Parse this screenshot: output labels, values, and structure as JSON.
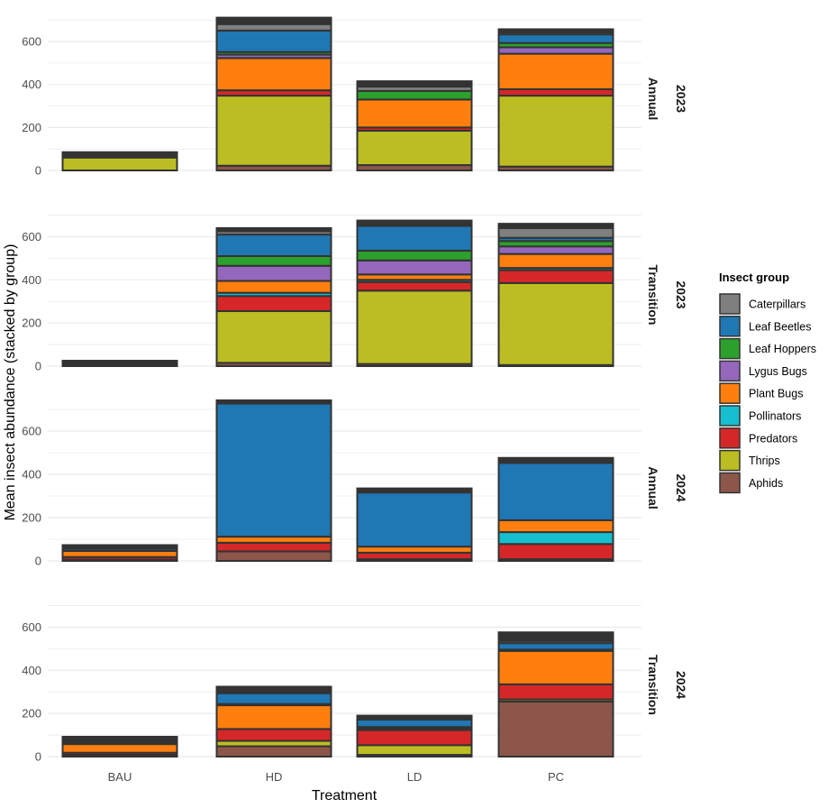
{
  "chart_data": {
    "type": "bar",
    "stacked": true,
    "faceted": true,
    "xlabel": "Treatment",
    "ylabel": "Mean insect abundance (stacked by group)",
    "categories": [
      "BAU",
      "HD",
      "LD",
      "PC"
    ],
    "yticks": [
      0,
      200,
      400,
      600
    ],
    "grid": true,
    "legend": {
      "title": "Insect group",
      "position": "right",
      "entries": [
        {
          "name": "Caterpillars",
          "color": "#7f7f7f"
        },
        {
          "name": "Leaf Beetles",
          "color": "#1f77b4"
        },
        {
          "name": "Leaf Hoppers",
          "color": "#2ca02c"
        },
        {
          "name": "Lygus Bugs",
          "color": "#9467bd"
        },
        {
          "name": "Plant Bugs",
          "color": "#ff7f0e"
        },
        {
          "name": "Pollinators",
          "color": "#17becf"
        },
        {
          "name": "Predators",
          "color": "#d62728"
        },
        {
          "name": "Thrips",
          "color": "#bcbd22"
        },
        {
          "name": "Aphids",
          "color": "#8c564b"
        }
      ]
    },
    "stack_order_bottom_to_top": [
      "Aphids",
      "Thrips",
      "Predators",
      "Pollinators",
      "Plant Bugs",
      "Lygus Bugs",
      "Leaf Hoppers",
      "Leaf Beetles",
      "Caterpillars"
    ],
    "panels": [
      {
        "strip_left": "Annual",
        "strip_right": "2023",
        "ylim": [
          0,
          720
        ],
        "bars": {
          "BAU": {
            "Aphids": 0,
            "Thrips": 60,
            "Predators": 0,
            "Pollinators": 0,
            "Plant Bugs": 0,
            "Lygus Bugs": 0,
            "Leaf Hoppers": 0,
            "Leaf Beetles": 0,
            "Caterpillars": 0,
            "Other": 25
          },
          "HD": {
            "Aphids": 22,
            "Thrips": 326,
            "Predators": 25,
            "Pollinators": 0,
            "Plant Bugs": 150,
            "Lygus Bugs": 16,
            "Leaf Hoppers": 12,
            "Leaf Beetles": 100,
            "Caterpillars": 30,
            "Other": 30
          },
          "LD": {
            "Aphids": 25,
            "Thrips": 160,
            "Predators": 15,
            "Pollinators": 0,
            "Plant Bugs": 130,
            "Lygus Bugs": 0,
            "Leaf Hoppers": 40,
            "Leaf Beetles": 0,
            "Caterpillars": 20,
            "Other": 25
          },
          "PC": {
            "Aphids": 18,
            "Thrips": 330,
            "Predators": 30,
            "Pollinators": 0,
            "Plant Bugs": 165,
            "Lygus Bugs": 30,
            "Leaf Hoppers": 20,
            "Leaf Beetles": 40,
            "Caterpillars": 9,
            "Other": 15
          }
        }
      },
      {
        "strip_left": "Transition",
        "strip_right": "2023",
        "ylim": [
          0,
          720
        ],
        "bars": {
          "BAU": {
            "Aphids": 0,
            "Thrips": 0,
            "Predators": 0,
            "Pollinators": 0,
            "Plant Bugs": 0,
            "Lygus Bugs": 0,
            "Leaf Hoppers": 0,
            "Leaf Beetles": 0,
            "Caterpillars": 0,
            "Other": 25
          },
          "HD": {
            "Aphids": 15,
            "Thrips": 240,
            "Predators": 70,
            "Pollinators": 15,
            "Plant Bugs": 55,
            "Lygus Bugs": 70,
            "Leaf Hoppers": 45,
            "Leaf Beetles": 100,
            "Caterpillars": 15,
            "Other": 15
          },
          "LD": {
            "Aphids": 10,
            "Thrips": 340,
            "Predators": 40,
            "Pollinators": 10,
            "Plant Bugs": 25,
            "Lygus Bugs": 65,
            "Leaf Hoppers": 45,
            "Leaf Beetles": 115,
            "Caterpillars": 5,
            "Other": 20
          },
          "PC": {
            "Aphids": 5,
            "Thrips": 380,
            "Predators": 60,
            "Pollinators": 10,
            "Plant Bugs": 65,
            "Lygus Bugs": 35,
            "Leaf Hoppers": 25,
            "Leaf Beetles": 15,
            "Caterpillars": 45,
            "Other": 20
          }
        }
      },
      {
        "strip_left": "Annual",
        "strip_right": "2024",
        "ylim": [
          0,
          760
        ],
        "bars": {
          "BAU": {
            "Aphids": 6,
            "Thrips": 0,
            "Predators": 12,
            "Pollinators": 0,
            "Plant Bugs": 28,
            "Lygus Bugs": 0,
            "Leaf Hoppers": 0,
            "Leaf Beetles": 10,
            "Caterpillars": 0,
            "Other": 17
          },
          "HD": {
            "Aphids": 44,
            "Thrips": 0,
            "Predators": 40,
            "Pollinators": 0,
            "Plant Bugs": 28,
            "Lygus Bugs": 0,
            "Leaf Hoppers": 0,
            "Leaf Beetles": 615,
            "Caterpillars": 0,
            "Other": 15
          },
          "LD": {
            "Aphids": 8,
            "Thrips": 0,
            "Predators": 30,
            "Pollinators": 0,
            "Plant Bugs": 28,
            "Lygus Bugs": 0,
            "Leaf Hoppers": 0,
            "Leaf Beetles": 250,
            "Caterpillars": 0,
            "Other": 19
          },
          "PC": {
            "Aphids": 8,
            "Thrips": 0,
            "Predators": 70,
            "Pollinators": 55,
            "Plant Bugs": 55,
            "Lygus Bugs": 0,
            "Leaf Hoppers": 0,
            "Leaf Beetles": 265,
            "Caterpillars": 0,
            "Other": 23
          }
        }
      },
      {
        "strip_left": "Transition",
        "strip_right": "2024",
        "ylim": [
          0,
          720
        ],
        "bars": {
          "BAU": {
            "Aphids": 8,
            "Thrips": 0,
            "Predators": 10,
            "Pollinators": 0,
            "Plant Bugs": 40,
            "Lygus Bugs": 0,
            "Leaf Hoppers": 0,
            "Leaf Beetles": 0,
            "Caterpillars": 0,
            "Other": 34
          },
          "HD": {
            "Aphids": 48,
            "Thrips": 25,
            "Predators": 55,
            "Pollinators": 0,
            "Plant Bugs": 110,
            "Lygus Bugs": 0,
            "Leaf Hoppers": 6,
            "Leaf Beetles": 50,
            "Caterpillars": 0,
            "Other": 30
          },
          "LD": {
            "Aphids": 8,
            "Thrips": 45,
            "Predators": 70,
            "Pollinators": 0,
            "Plant Bugs": 8,
            "Lygus Bugs": 0,
            "Leaf Hoppers": 6,
            "Leaf Beetles": 35,
            "Caterpillars": 0,
            "Other": 18
          },
          "PC": {
            "Aphids": 255,
            "Thrips": 10,
            "Predators": 70,
            "Pollinators": 0,
            "Plant Bugs": 155,
            "Lygus Bugs": 6,
            "Leaf Hoppers": 0,
            "Leaf Beetles": 30,
            "Caterpillars": 10,
            "Other": 40
          }
        }
      }
    ]
  }
}
